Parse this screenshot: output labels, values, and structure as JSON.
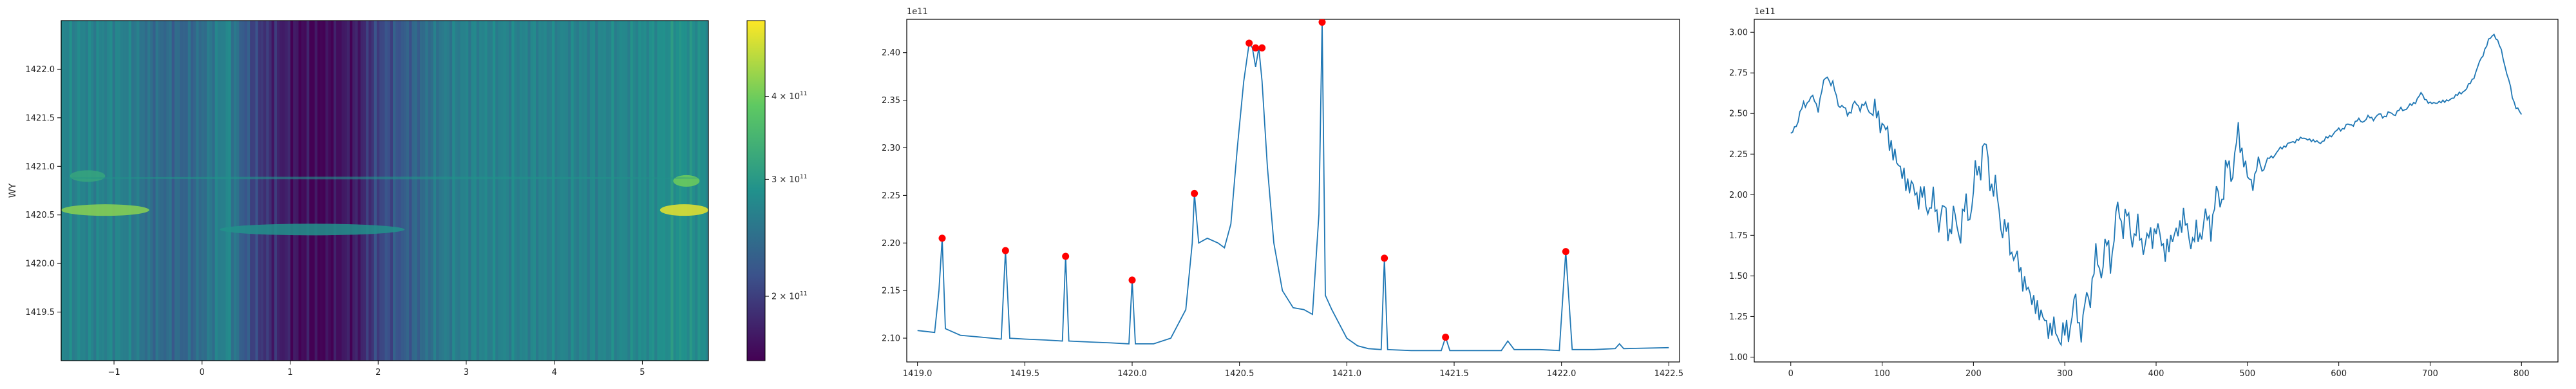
{
  "chart_data": [
    {
      "type": "heatmap",
      "title": "",
      "xlabel": "",
      "ylabel": "WY",
      "xlim": [
        -1.6,
        5.75
      ],
      "ylim": [
        1419.0,
        1422.5
      ],
      "xticks": [
        "−1",
        "0",
        "1",
        "2",
        "3",
        "4",
        "5"
      ],
      "xtick_values": [
        -1,
        0,
        1,
        2,
        3,
        4,
        5
      ],
      "yticks": [
        "1419.5",
        "1420.0",
        "1420.5",
        "1421.0",
        "1421.5",
        "1422.0"
      ],
      "ytick_values": [
        1419.5,
        1420.0,
        1420.5,
        1421.0,
        1421.5,
        1422.0
      ],
      "colorbar": {
        "colormap": "viridis",
        "scale": "log",
        "range": [
          160000000000.0,
          520000000000.0
        ],
        "ticks": [
          {
            "label": "2 × 10",
            "exp": "11",
            "value": 200000000000.0
          },
          {
            "label": "3 × 10",
            "exp": "11",
            "value": 300000000000.0
          },
          {
            "label": "4 × 10",
            "exp": "11",
            "value": 400000000000.0
          }
        ]
      },
      "column_profile": {
        "x": [
          -1.6,
          -1.3,
          -1.0,
          -0.8,
          -0.6,
          -0.4,
          -0.2,
          0.0,
          0.15,
          0.3,
          0.45,
          0.6,
          0.75,
          0.9,
          1.0,
          1.1,
          1.2,
          1.3,
          1.4,
          1.5,
          1.6,
          1.7,
          1.8,
          1.9,
          2.0,
          2.15,
          2.3,
          2.45,
          2.6,
          2.75,
          2.9,
          3.2,
          3.6,
          4.0,
          4.4,
          4.8,
          5.1,
          5.4,
          5.75
        ],
        "value": [
          2.75,
          2.7,
          2.7,
          2.65,
          2.45,
          2.4,
          2.35,
          2.45,
          2.6,
          2.75,
          2.3,
          2.05,
          1.9,
          1.8,
          1.75,
          1.65,
          1.7,
          1.6,
          1.65,
          1.65,
          1.75,
          1.7,
          1.8,
          1.95,
          2.05,
          2.15,
          2.25,
          2.35,
          2.5,
          2.6,
          2.65,
          2.7,
          2.7,
          2.7,
          2.7,
          2.75,
          2.8,
          2.9,
          2.8
        ]
      },
      "features": [
        {
          "x": [
            -1.6,
            -0.6
          ],
          "y": 1420.55,
          "level": 4.2
        },
        {
          "x": [
            -1.5,
            -1.1
          ],
          "y": 1420.9,
          "level": 3.2
        },
        {
          "x": [
            5.2,
            5.75
          ],
          "y": 1420.55,
          "level": 5.0
        },
        {
          "x": [
            5.35,
            5.65
          ],
          "y": 1420.85,
          "level": 4.0
        },
        {
          "x": [
            0.2,
            2.3
          ],
          "y": 1420.35,
          "level": 2.9
        },
        {
          "x": [
            -1.6,
            5.75
          ],
          "y": 1420.88,
          "level": 2.9
        }
      ]
    },
    {
      "type": "line",
      "title": "",
      "xlabel": "",
      "ylabel": "",
      "offset_label": "1e11",
      "xlim": [
        1418.95,
        1422.55
      ],
      "ylim": [
        2.075,
        2.435
      ],
      "xticks": [
        "1419.0",
        "1419.5",
        "1420.0",
        "1420.5",
        "1421.0",
        "1421.5",
        "1422.0",
        "1422.5"
      ],
      "xtick_values": [
        1419.0,
        1419.5,
        1420.0,
        1420.5,
        1421.0,
        1421.5,
        1422.0,
        1422.5
      ],
      "yticks": [
        "2.10",
        "2.15",
        "2.20",
        "2.25",
        "2.30",
        "2.35",
        "2.40"
      ],
      "ytick_values": [
        2.1,
        2.15,
        2.2,
        2.25,
        2.3,
        2.35,
        2.4
      ],
      "line_color": "#1f77b4",
      "peak_color": "#ff0000",
      "x": [
        1419.0,
        1419.08,
        1419.1,
        1419.115,
        1419.13,
        1419.2,
        1419.3,
        1419.39,
        1419.41,
        1419.43,
        1419.5,
        1419.6,
        1419.675,
        1419.69,
        1419.705,
        1419.8,
        1419.9,
        1419.985,
        1420.0,
        1420.015,
        1420.1,
        1420.18,
        1420.25,
        1420.28,
        1420.29,
        1420.31,
        1420.35,
        1420.4,
        1420.43,
        1420.46,
        1420.49,
        1420.52,
        1420.545,
        1420.56,
        1420.575,
        1420.59,
        1420.605,
        1420.63,
        1420.66,
        1420.7,
        1420.75,
        1420.8,
        1420.84,
        1420.87,
        1420.885,
        1420.9,
        1420.93,
        1421.0,
        1421.05,
        1421.1,
        1421.16,
        1421.175,
        1421.19,
        1421.3,
        1421.44,
        1421.46,
        1421.48,
        1421.6,
        1421.72,
        1421.75,
        1421.78,
        1421.9,
        1421.99,
        1422.02,
        1422.05,
        1422.15,
        1422.25,
        1422.27,
        1422.29,
        1422.5
      ],
      "y": [
        2.108,
        2.106,
        2.15,
        2.205,
        2.11,
        2.103,
        2.101,
        2.099,
        2.192,
        2.1,
        2.099,
        2.098,
        2.097,
        2.186,
        2.097,
        2.096,
        2.095,
        2.094,
        2.161,
        2.094,
        2.094,
        2.1,
        2.13,
        2.2,
        2.252,
        2.2,
        2.205,
        2.2,
        2.195,
        2.22,
        2.3,
        2.37,
        2.41,
        2.405,
        2.385,
        2.405,
        2.37,
        2.28,
        2.2,
        2.15,
        2.132,
        2.13,
        2.125,
        2.23,
        2.432,
        2.145,
        2.13,
        2.1,
        2.092,
        2.089,
        2.088,
        2.184,
        2.088,
        2.087,
        2.087,
        2.101,
        2.087,
        2.087,
        2.087,
        2.097,
        2.088,
        2.088,
        2.087,
        2.191,
        2.088,
        2.088,
        2.089,
        2.094,
        2.089,
        2.09
      ],
      "peaks": [
        {
          "x": 1419.115,
          "y": 2.205
        },
        {
          "x": 1419.41,
          "y": 2.192
        },
        {
          "x": 1419.69,
          "y": 2.186
        },
        {
          "x": 1420.0,
          "y": 2.161
        },
        {
          "x": 1420.29,
          "y": 2.252
        },
        {
          "x": 1420.545,
          "y": 2.41
        },
        {
          "x": 1420.575,
          "y": 2.405
        },
        {
          "x": 1420.605,
          "y": 2.405
        },
        {
          "x": 1420.885,
          "y": 2.432
        },
        {
          "x": 1421.175,
          "y": 2.184
        },
        {
          "x": 1421.46,
          "y": 2.101
        },
        {
          "x": 1422.02,
          "y": 2.191
        }
      ]
    },
    {
      "type": "line",
      "title": "",
      "xlabel": "",
      "ylabel": "",
      "offset_label": "1e11",
      "xlim": [
        -40,
        840
      ],
      "ylim": [
        0.97,
        3.08
      ],
      "xticks": [
        "0",
        "100",
        "200",
        "300",
        "400",
        "500",
        "600",
        "700",
        "800"
      ],
      "xtick_values": [
        0,
        100,
        200,
        300,
        400,
        500,
        600,
        700,
        800
      ],
      "yticks": [
        "1.00",
        "1.25",
        "1.50",
        "1.75",
        "2.00",
        "2.25",
        "2.50",
        "2.75",
        "3.00"
      ],
      "ytick_values": [
        1.0,
        1.25,
        1.5,
        1.75,
        2.0,
        2.25,
        2.5,
        2.75,
        3.0
      ],
      "line_color": "#1f77b4",
      "control_x": [
        0,
        10,
        20,
        30,
        40,
        50,
        60,
        70,
        80,
        90,
        100,
        110,
        120,
        130,
        140,
        150,
        160,
        170,
        180,
        190,
        200,
        210,
        220,
        230,
        240,
        250,
        260,
        270,
        280,
        290,
        300,
        310,
        320,
        330,
        340,
        350,
        360,
        370,
        380,
        390,
        400,
        410,
        420,
        430,
        440,
        450,
        460,
        470,
        480,
        490,
        495,
        500,
        510,
        520,
        540,
        560,
        580,
        600,
        620,
        640,
        660,
        680,
        690,
        700,
        720,
        740,
        750,
        760,
        770,
        780,
        790,
        800
      ],
      "control_y": [
        2.35,
        2.5,
        2.6,
        2.55,
        2.75,
        2.6,
        2.5,
        2.55,
        2.55,
        2.5,
        2.45,
        2.3,
        2.15,
        2.05,
        2.0,
        1.95,
        1.9,
        1.85,
        1.8,
        1.85,
        2.0,
        2.3,
        2.1,
        1.85,
        1.7,
        1.55,
        1.4,
        1.3,
        1.2,
        1.15,
        1.12,
        1.3,
        1.2,
        1.5,
        1.6,
        1.65,
        1.9,
        1.8,
        1.75,
        1.7,
        1.8,
        1.65,
        1.75,
        1.85,
        1.7,
        1.8,
        1.85,
        2.0,
        2.15,
        2.3,
        2.35,
        2.05,
        2.15,
        2.2,
        2.3,
        2.35,
        2.32,
        2.4,
        2.45,
        2.48,
        2.5,
        2.55,
        2.62,
        2.56,
        2.58,
        2.65,
        2.75,
        2.9,
        3.0,
        2.85,
        2.6,
        2.48
      ]
    }
  ]
}
